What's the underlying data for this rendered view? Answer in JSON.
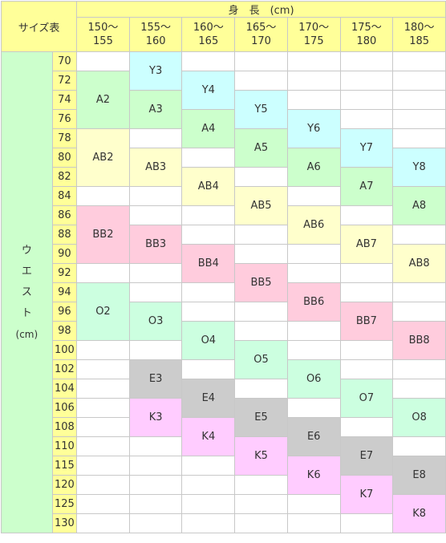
{
  "table": {
    "corner_label": "サイズ表",
    "height_title": "身　長　(cm)",
    "height_ranges": [
      {
        "from": "150〜",
        "to": "155"
      },
      {
        "from": "155〜",
        "to": "160"
      },
      {
        "from": "160〜",
        "to": "165"
      },
      {
        "from": "165〜",
        "to": "170"
      },
      {
        "from": "170〜",
        "to": "175"
      },
      {
        "from": "175〜",
        "to": "180"
      },
      {
        "from": "180〜",
        "to": "185"
      }
    ],
    "waist_label_chars": [
      "ウ",
      "エ",
      "ス",
      "ト"
    ],
    "waist_unit": "(cm)",
    "waist_values": [
      "70",
      "72",
      "74",
      "76",
      "78",
      "80",
      "82",
      "84",
      "86",
      "88",
      "90",
      "92",
      "94",
      "96",
      "98",
      "100",
      "102",
      "104",
      "106",
      "108",
      "110",
      "115",
      "120",
      "125",
      "130"
    ]
  },
  "columns": [
    {
      "start": 2,
      "entries": [
        {
          "label": "A2",
          "start": 2,
          "span": 3,
          "color": "#ccffcc"
        },
        {
          "label": "AB2",
          "start": 5,
          "span": 3,
          "color": "#ffffcc"
        },
        {
          "label": "BB2",
          "start": 9,
          "span": 3,
          "color": "#ffccdd"
        },
        {
          "label": "O2",
          "start": 13,
          "span": 3,
          "color": "#ccffe0"
        }
      ]
    },
    {
      "entries": [
        {
          "label": "Y3",
          "start": 1,
          "span": 2,
          "color": "#ccffff"
        },
        {
          "label": "A3",
          "start": 3,
          "span": 2,
          "color": "#ccffcc"
        },
        {
          "label": "AB3",
          "start": 6,
          "span": 2,
          "color": "#ffffcc"
        },
        {
          "label": "BB3",
          "start": 10,
          "span": 2,
          "color": "#ffccdd"
        },
        {
          "label": "O3",
          "start": 14,
          "span": 2,
          "color": "#ccffe0"
        },
        {
          "label": "E3",
          "start": 17,
          "span": 2,
          "color": "#cccccc"
        },
        {
          "label": "K3",
          "start": 19,
          "span": 2,
          "color": "#ffccff"
        }
      ]
    },
    {
      "entries": [
        {
          "label": "Y4",
          "start": 2,
          "span": 2,
          "color": "#ccffff"
        },
        {
          "label": "A4",
          "start": 4,
          "span": 2,
          "color": "#ccffcc"
        },
        {
          "label": "AB4",
          "start": 7,
          "span": 2,
          "color": "#ffffcc"
        },
        {
          "label": "BB4",
          "start": 11,
          "span": 2,
          "color": "#ffccdd"
        },
        {
          "label": "O4",
          "start": 15,
          "span": 2,
          "color": "#ccffe0"
        },
        {
          "label": "E4",
          "start": 18,
          "span": 2,
          "color": "#cccccc"
        },
        {
          "label": "K4",
          "start": 20,
          "span": 2,
          "color": "#ffccff"
        }
      ]
    },
    {
      "entries": [
        {
          "label": "Y5",
          "start": 3,
          "span": 2,
          "color": "#ccffff"
        },
        {
          "label": "A5",
          "start": 5,
          "span": 2,
          "color": "#ccffcc"
        },
        {
          "label": "AB5",
          "start": 8,
          "span": 2,
          "color": "#ffffcc"
        },
        {
          "label": "BB5",
          "start": 12,
          "span": 2,
          "color": "#ffccdd"
        },
        {
          "label": "O5",
          "start": 16,
          "span": 2,
          "color": "#ccffe0"
        },
        {
          "label": "E5",
          "start": 19,
          "span": 2,
          "color": "#cccccc"
        },
        {
          "label": "K5",
          "start": 21,
          "span": 2,
          "color": "#ffccff"
        }
      ]
    },
    {
      "entries": [
        {
          "label": "Y6",
          "start": 4,
          "span": 2,
          "color": "#ccffff"
        },
        {
          "label": "A6",
          "start": 6,
          "span": 2,
          "color": "#ccffcc"
        },
        {
          "label": "AB6",
          "start": 9,
          "span": 2,
          "color": "#ffffcc"
        },
        {
          "label": "BB6",
          "start": 13,
          "span": 2,
          "color": "#ffccdd"
        },
        {
          "label": "O6",
          "start": 17,
          "span": 2,
          "color": "#ccffe0"
        },
        {
          "label": "E6",
          "start": 20,
          "span": 2,
          "color": "#cccccc"
        },
        {
          "label": "K6",
          "start": 22,
          "span": 2,
          "color": "#ffccff"
        }
      ]
    },
    {
      "entries": [
        {
          "label": "Y7",
          "start": 5,
          "span": 2,
          "color": "#ccffff"
        },
        {
          "label": "A7",
          "start": 7,
          "span": 2,
          "color": "#ccffcc"
        },
        {
          "label": "AB7",
          "start": 10,
          "span": 2,
          "color": "#ffffcc"
        },
        {
          "label": "BB7",
          "start": 14,
          "span": 2,
          "color": "#ffccdd"
        },
        {
          "label": "O7",
          "start": 18,
          "span": 2,
          "color": "#ccffe0"
        },
        {
          "label": "E7",
          "start": 21,
          "span": 2,
          "color": "#cccccc"
        },
        {
          "label": "K7",
          "start": 23,
          "span": 2,
          "color": "#ffccff"
        }
      ]
    },
    {
      "entries": [
        {
          "label": "Y8",
          "start": 6,
          "span": 2,
          "color": "#ccffff"
        },
        {
          "label": "A8",
          "start": 8,
          "span": 2,
          "color": "#ccffcc"
        },
        {
          "label": "AB8",
          "start": 11,
          "span": 2,
          "color": "#ffffcc"
        },
        {
          "label": "BB8",
          "start": 15,
          "span": 2,
          "color": "#ffccdd"
        },
        {
          "label": "O8",
          "start": 19,
          "span": 2,
          "color": "#ccffe0"
        },
        {
          "label": "E8",
          "start": 22,
          "span": 2,
          "color": "#cccccc"
        },
        {
          "label": "K8",
          "start": 24,
          "span": 2,
          "color": "#ffccff"
        }
      ]
    }
  ]
}
